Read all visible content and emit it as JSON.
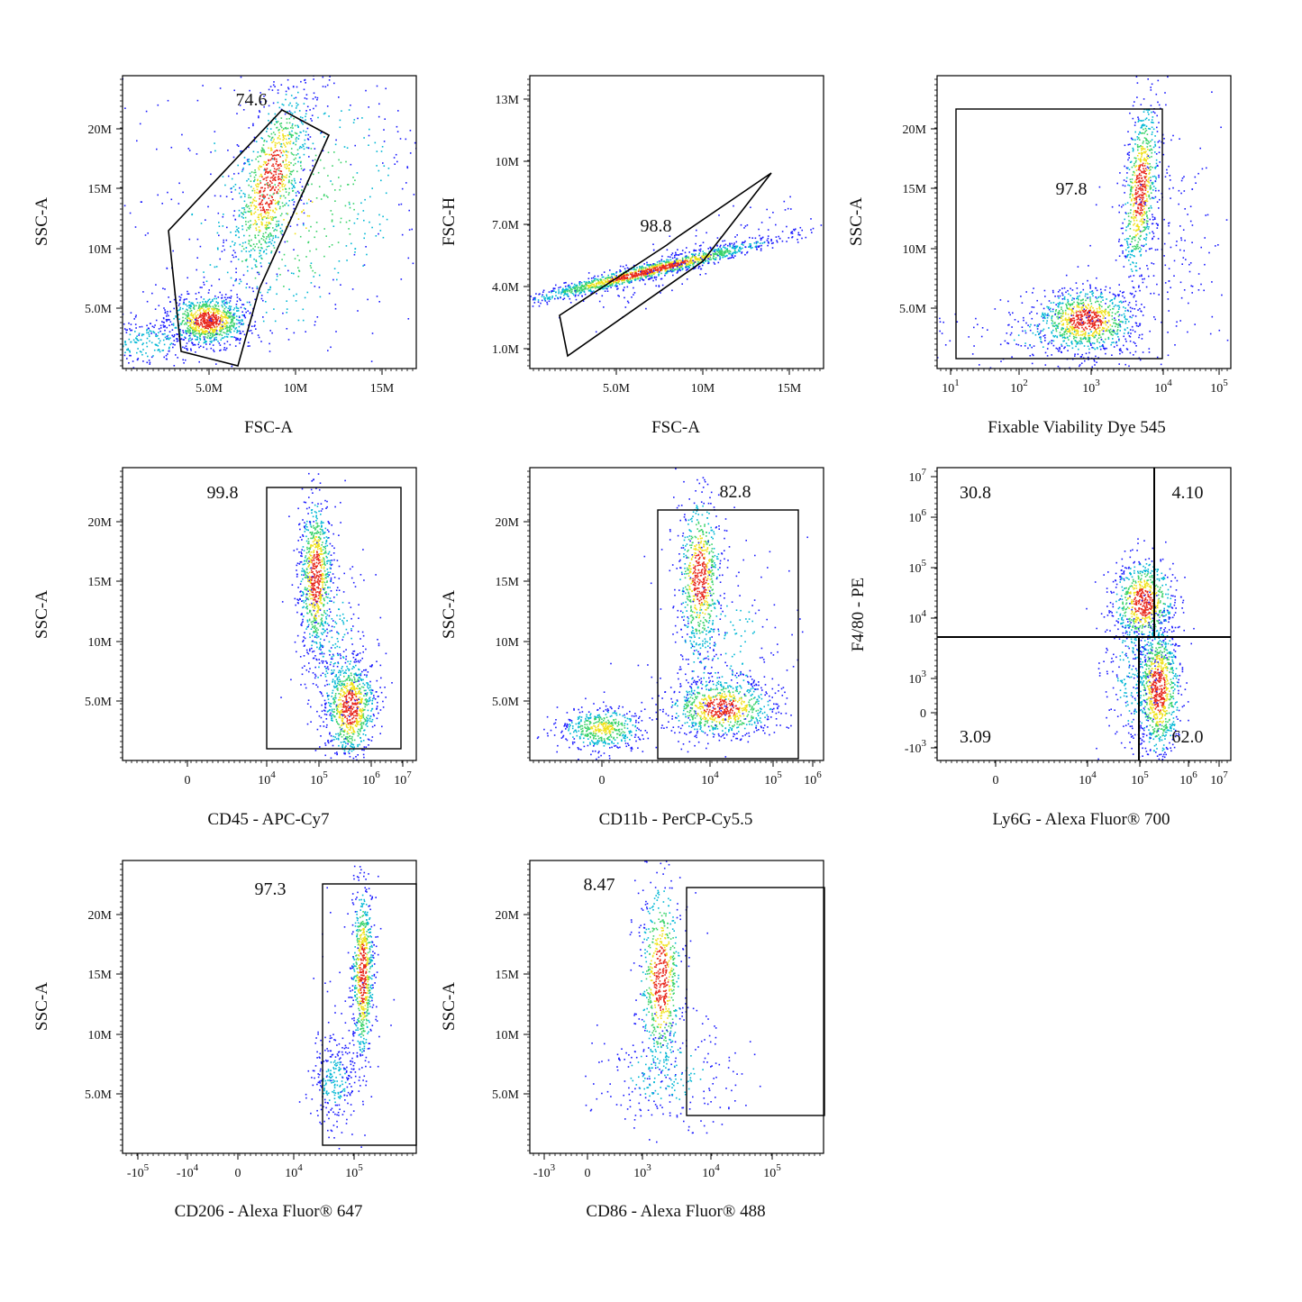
{
  "chart_data": [
    {
      "type": "scatter",
      "xlabel": "FSC-A",
      "ylabel": "SSC-A",
      "x_ticks": [
        "5.0M",
        "10M",
        "15M"
      ],
      "y_ticks": [
        "5.0M",
        "10M",
        "15M",
        "20M"
      ],
      "gates": [
        {
          "label": "74.6"
        }
      ]
    },
    {
      "type": "scatter",
      "xlabel": "FSC-A",
      "ylabel": "FSC-H",
      "x_ticks": [
        "5.0M",
        "10M",
        "15M"
      ],
      "y_ticks": [
        "1.0M",
        "4.0M",
        "7.0M",
        "10M",
        "13M"
      ],
      "gates": [
        {
          "label": "98.8"
        }
      ]
    },
    {
      "type": "scatter",
      "xlabel": "Fixable Viability Dye 545",
      "ylabel": "SSC-A",
      "x_ticks": [
        {
          "base": "10",
          "exp": "1"
        },
        {
          "base": "10",
          "exp": "2"
        },
        {
          "base": "10",
          "exp": "3"
        },
        {
          "base": "10",
          "exp": "4"
        },
        {
          "base": "10",
          "exp": "5"
        }
      ],
      "y_ticks": [
        "5.0M",
        "10M",
        "15M",
        "20M"
      ],
      "gates": [
        {
          "label": "97.8"
        }
      ]
    },
    {
      "type": "scatter",
      "xlabel": "CD45 - APC-Cy7",
      "ylabel": "SSC-A",
      "x_ticks": [
        {
          "base": "0",
          "exp": ""
        },
        {
          "base": "10",
          "exp": "4"
        },
        {
          "base": "10",
          "exp": "5"
        },
        {
          "base": "10",
          "exp": "6"
        },
        {
          "base": "10",
          "exp": "7"
        }
      ],
      "y_ticks": [
        "5.0M",
        "10M",
        "15M",
        "20M"
      ],
      "gates": [
        {
          "label": "99.8"
        }
      ]
    },
    {
      "type": "scatter",
      "xlabel": "CD11b - PerCP-Cy5.5",
      "ylabel": "SSC-A",
      "x_ticks": [
        {
          "base": "0",
          "exp": ""
        },
        {
          "base": "10",
          "exp": "4"
        },
        {
          "base": "10",
          "exp": "5"
        },
        {
          "base": "10",
          "exp": "6"
        }
      ],
      "y_ticks": [
        "5.0M",
        "10M",
        "15M",
        "20M"
      ],
      "gates": [
        {
          "label": "82.8"
        }
      ]
    },
    {
      "type": "scatter",
      "xlabel": "Ly6G - Alexa Fluor® 700",
      "ylabel": "F4/80 - PE",
      "x_ticks": [
        {
          "base": "0",
          "exp": ""
        },
        {
          "base": "10",
          "exp": "4"
        },
        {
          "base": "10",
          "exp": "5"
        },
        {
          "base": "10",
          "exp": "6"
        },
        {
          "base": "10",
          "exp": "7"
        }
      ],
      "y_ticks": [
        {
          "base": "10",
          "exp": "7"
        },
        {
          "base": "10",
          "exp": "6"
        },
        {
          "base": "10",
          "exp": "5"
        },
        {
          "base": "10",
          "exp": "4"
        },
        {
          "base": "10",
          "exp": "3"
        },
        {
          "base": "0",
          "exp": ""
        },
        {
          "base": "-10",
          "exp": "3"
        }
      ],
      "gates": [
        {
          "label": "30.8"
        },
        {
          "label": "4.10"
        },
        {
          "label": "3.09"
        },
        {
          "label": "62.0"
        }
      ]
    },
    {
      "type": "scatter",
      "xlabel": "CD206 - Alexa Fluor® 647",
      "ylabel": "SSC-A",
      "x_ticks": [
        {
          "base": "-10",
          "exp": "5"
        },
        {
          "base": "-10",
          "exp": "4"
        },
        {
          "base": "0",
          "exp": ""
        },
        {
          "base": "10",
          "exp": "4"
        },
        {
          "base": "10",
          "exp": "5"
        }
      ],
      "y_ticks": [
        "5.0M",
        "10M",
        "15M",
        "20M"
      ],
      "gates": [
        {
          "label": "97.3"
        }
      ]
    },
    {
      "type": "scatter",
      "xlabel": "CD86 - Alexa Fluor® 488",
      "ylabel": "SSC-A",
      "x_ticks": [
        {
          "base": "-10",
          "exp": "3"
        },
        {
          "base": "0",
          "exp": ""
        },
        {
          "base": "10",
          "exp": "3"
        },
        {
          "base": "10",
          "exp": "4"
        },
        {
          "base": "10",
          "exp": "5"
        }
      ],
      "y_ticks": [
        "5.0M",
        "10M",
        "15M",
        "20M"
      ],
      "gates": [
        {
          "label": "8.47"
        }
      ]
    }
  ],
  "colors": {
    "sparse": "#1a1aff",
    "low": "#00b7d4",
    "mid": "#3ad36a",
    "high": "#f0e11a",
    "peak": "#e8281c",
    "gate": "#000000"
  }
}
